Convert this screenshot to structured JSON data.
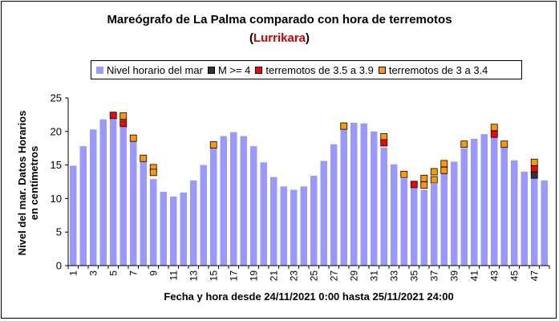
{
  "chart_data": {
    "type": "bar",
    "title": "Mareógrafo de La Palma comparado con hora de terremotos",
    "subtitle_open": "(",
    "subtitle_highlight": "Lurrikara",
    "subtitle_close": ")",
    "xlabel": "Fecha y hora desde 24/11/2021 0:00 hasta 25/11/2021 24:00",
    "ylabel_line1": "Nivel del mar. Datos Horarios",
    "ylabel_line2": "en centímetros",
    "ylim": [
      0,
      25
    ],
    "yticks": [
      "0",
      "5",
      "10",
      "15",
      "20",
      "25"
    ],
    "grid": false,
    "legend_placement": "top",
    "categories": [
      "1",
      "2",
      "3",
      "4",
      "5",
      "6",
      "7",
      "8",
      "9",
      "10",
      "11",
      "12",
      "13",
      "14",
      "15",
      "16",
      "17",
      "18",
      "19",
      "20",
      "21",
      "22",
      "23",
      "24",
      "25",
      "26",
      "27",
      "28",
      "29",
      "30",
      "31",
      "32",
      "33",
      "34",
      "35",
      "36",
      "37",
      "38",
      "39",
      "40",
      "41",
      "42",
      "43",
      "44",
      "45",
      "46",
      "47",
      "48"
    ],
    "xtick_labels": [
      "1",
      "3",
      "5",
      "7",
      "9",
      "11",
      "13",
      "15",
      "17",
      "19",
      "21",
      "23",
      "25",
      "27",
      "29",
      "31",
      "33",
      "35",
      "37",
      "39",
      "41",
      "43",
      "45",
      "47"
    ],
    "series": [
      {
        "name": "Nivel horario del mar",
        "color": "#9999ff",
        "values": [
          14.9,
          17.8,
          20.3,
          21.8,
          21.9,
          20.8,
          18.5,
          15.6,
          12.9,
          11.0,
          10.3,
          10.9,
          12.7,
          15.0,
          17.6,
          19.3,
          19.9,
          19.3,
          17.8,
          15.4,
          13.2,
          11.8,
          11.3,
          11.8,
          13.4,
          15.6,
          18.1,
          20.3,
          21.3,
          21.2,
          20.0,
          17.6,
          15.1,
          13.0,
          11.8,
          11.3,
          12.2,
          13.8,
          15.5,
          17.5,
          18.9,
          19.6,
          19.1,
          17.6,
          15.7,
          14.0,
          13.5,
          12.7
        ]
      },
      {
        "name": "M >= 4",
        "color": "#333333",
        "markers": [
          {
            "x": 47,
            "y": 13.5
          }
        ]
      },
      {
        "name": "terremotos de 3.5 a 3.9",
        "color": "#ff0000",
        "markers": [
          {
            "x": 5,
            "y": 22.4
          },
          {
            "x": 6,
            "y": 21.2
          },
          {
            "x": 32,
            "y": 18.3
          },
          {
            "x": 35,
            "y": 12.1
          },
          {
            "x": 43,
            "y": 19.6
          },
          {
            "x": 47,
            "y": 14.4
          }
        ]
      },
      {
        "name": "terremotos de 3 a 3.4",
        "color": "#ff9900",
        "markers": [
          {
            "x": 6,
            "y": 22.3
          },
          {
            "x": 7,
            "y": 19.0
          },
          {
            "x": 8,
            "y": 16.0
          },
          {
            "x": 9,
            "y": 14.6
          },
          {
            "x": 9,
            "y": 13.9
          },
          {
            "x": 15,
            "y": 18.0
          },
          {
            "x": 28,
            "y": 20.8
          },
          {
            "x": 32,
            "y": 19.2
          },
          {
            "x": 34,
            "y": 13.6
          },
          {
            "x": 36,
            "y": 13.0
          },
          {
            "x": 36,
            "y": 12.0
          },
          {
            "x": 37,
            "y": 14.0
          },
          {
            "x": 37,
            "y": 12.8
          },
          {
            "x": 38,
            "y": 15.2
          },
          {
            "x": 38,
            "y": 14.2
          },
          {
            "x": 40,
            "y": 18.1
          },
          {
            "x": 43,
            "y": 20.6
          },
          {
            "x": 44,
            "y": 18.1
          },
          {
            "x": 47,
            "y": 15.4
          }
        ]
      }
    ]
  }
}
